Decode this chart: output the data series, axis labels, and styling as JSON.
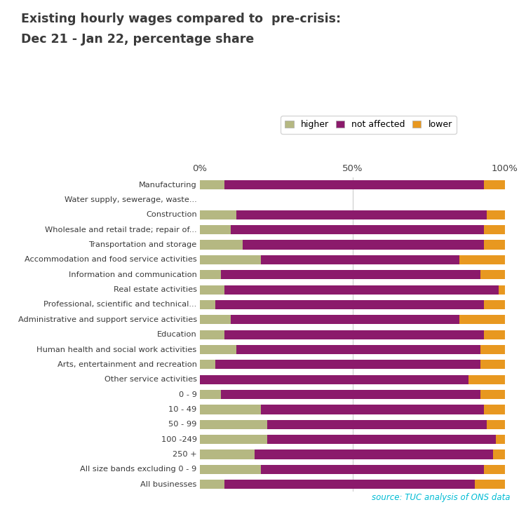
{
  "title_line1": "Existing hourly wages compared to  pre-crisis:",
  "title_line2": "Dec 21 - Jan 22, percentage share",
  "categories": [
    "Manufacturing",
    "Water supply, sewerage, waste...",
    "Construction",
    "Wholesale and retail trade; repair of...",
    "Transportation and storage",
    "Accommodation and food service activities",
    "Information and communication",
    "Real estate activities",
    "Professional, scientific and technical...",
    "Administrative and support service activities",
    "Education",
    "Human health and social work activities",
    "Arts, entertainment and recreation",
    "Other service activities",
    "0 - 9",
    "10 - 49",
    "50 - 99",
    "100 -249",
    "250 +",
    "All size bands excluding 0 - 9",
    "All businesses"
  ],
  "higher": [
    8,
    0,
    12,
    10,
    14,
    20,
    7,
    8,
    5,
    10,
    8,
    12,
    5,
    0,
    7,
    20,
    22,
    22,
    18,
    20,
    8
  ],
  "not_affected": [
    85,
    0,
    82,
    83,
    79,
    65,
    85,
    90,
    88,
    75,
    85,
    80,
    87,
    88,
    85,
    73,
    72,
    75,
    78,
    73,
    82
  ],
  "lower": [
    7,
    0,
    6,
    7,
    7,
    15,
    8,
    2,
    7,
    15,
    7,
    8,
    8,
    12,
    8,
    7,
    6,
    3,
    4,
    7,
    10
  ],
  "color_higher": "#b5b882",
  "color_not_affected": "#8b1a6b",
  "color_lower": "#e89820",
  "source_text": "source: TUC analysis of ONS data",
  "source_color": "#00bcd4",
  "background_color": "#ffffff",
  "title_color": "#3a3a3a",
  "legend_labels": [
    "higher",
    "not affected",
    "lower"
  ]
}
